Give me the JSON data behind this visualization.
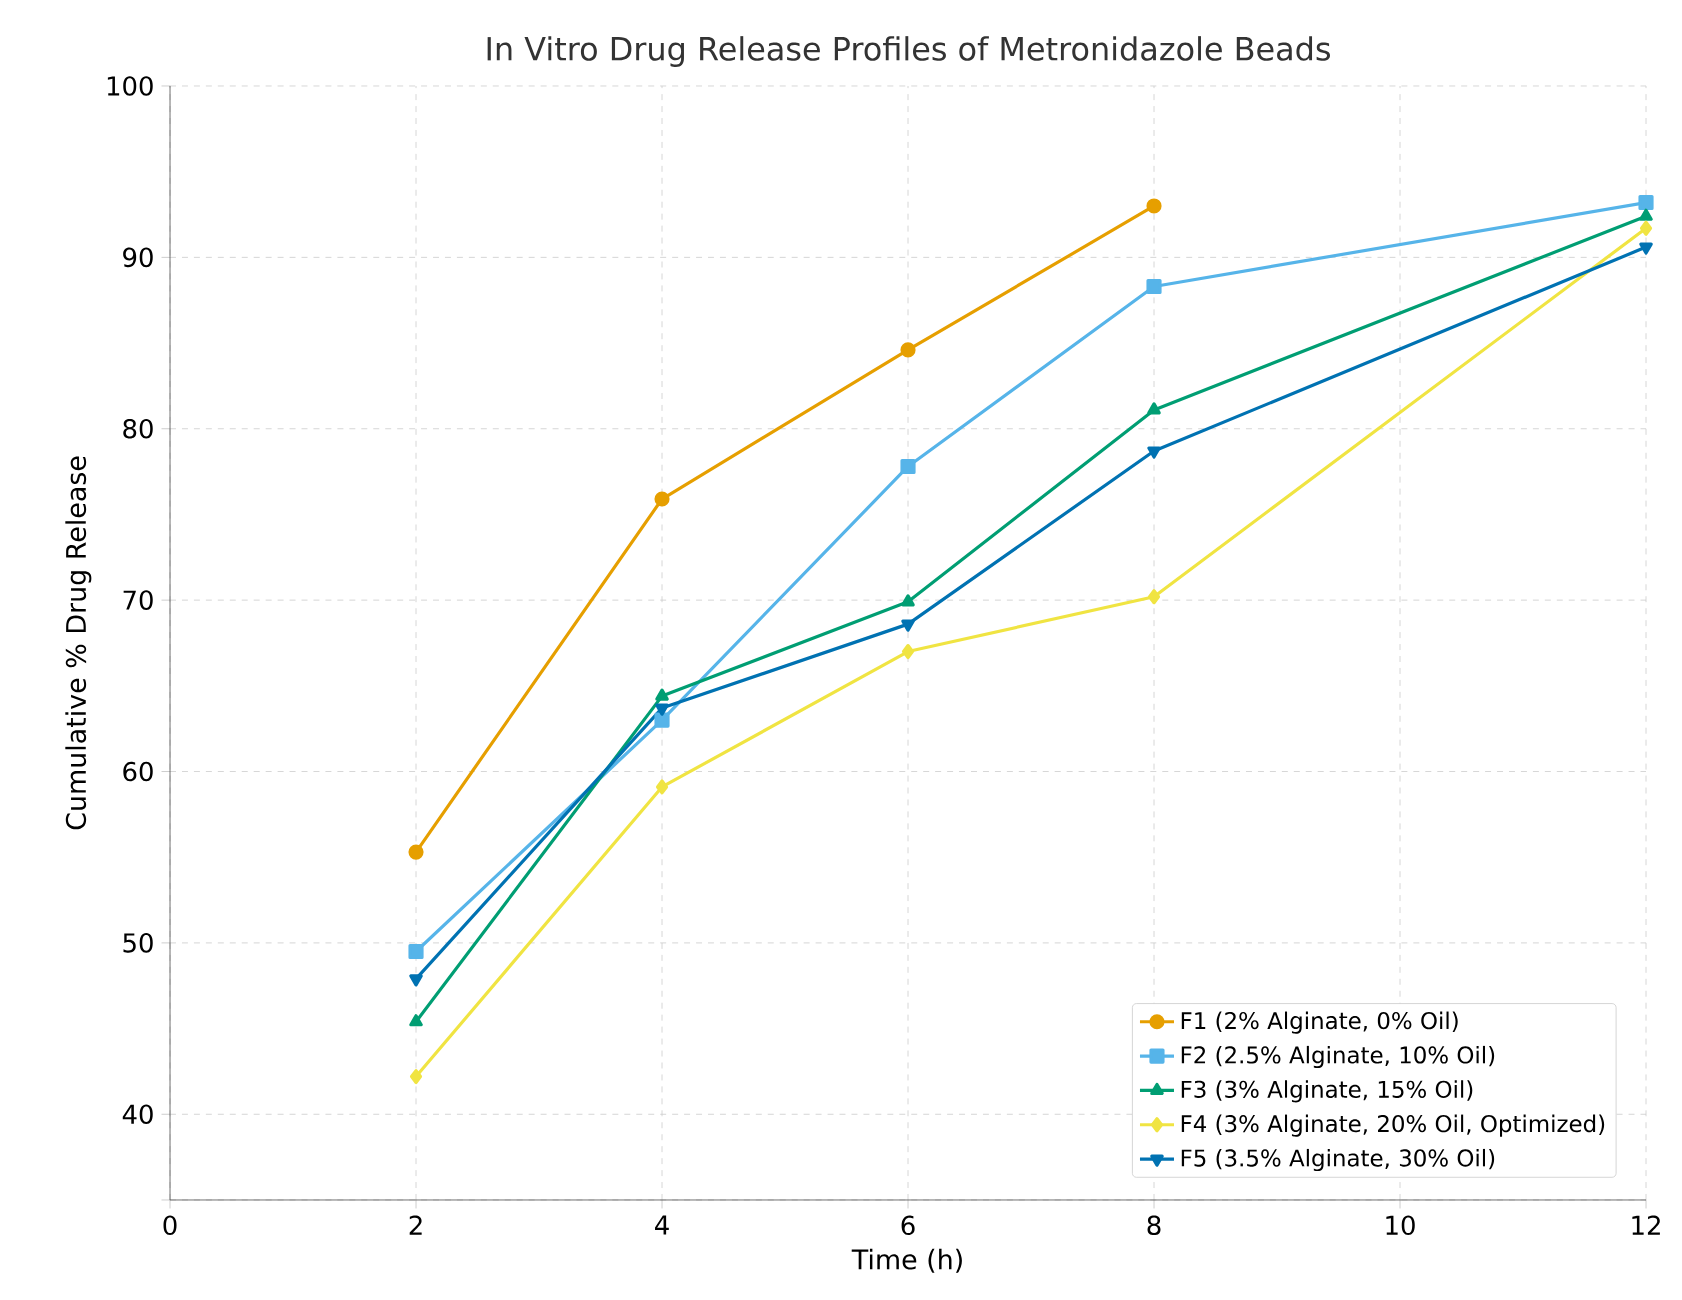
{
  "chart_data": {
    "type": "line",
    "title": "In Vitro Drug Release Profiles of Metronidazole Beads",
    "xlabel": "Time (h)",
    "ylabel": "Cumulative % Drug Release",
    "x": [
      2,
      4,
      6,
      8,
      12
    ],
    "series": [
      {
        "name": "F1 (2% Alginate, 0% Oil)",
        "color": "#e69f00",
        "marker": "circle",
        "values": [
          55.3,
          75.9,
          84.6,
          93.0,
          null
        ]
      },
      {
        "name": "F2 (2.5% Alginate, 10% Oil)",
        "color": "#56b4e9",
        "marker": "square",
        "values": [
          49.5,
          63.0,
          77.8,
          88.3,
          93.2
        ]
      },
      {
        "name": "F3 (3% Alginate, 15% Oil)",
        "color": "#009e73",
        "marker": "triangle",
        "values": [
          45.4,
          64.4,
          69.9,
          81.1,
          92.4
        ]
      },
      {
        "name": "F4 (3% Alginate, 20% Oil, Optimized)",
        "color": "#f0e442",
        "marker": "diamond",
        "values": [
          42.2,
          59.1,
          67.0,
          70.2,
          91.7
        ]
      },
      {
        "name": "F5 (3.5% Alginate, 30% Oil)",
        "color": "#0072b2",
        "marker": "triangle-down",
        "values": [
          47.9,
          63.7,
          68.6,
          78.7,
          90.6
        ]
      }
    ],
    "xlim": [
      0,
      12
    ],
    "xticks": [
      0,
      2,
      4,
      6,
      8,
      10,
      12
    ],
    "ylim": [
      35,
      100
    ],
    "yticks": [
      {
        "value": 35,
        "label": null
      },
      40,
      50,
      60,
      70,
      80,
      90,
      100
    ],
    "grid": true,
    "legend": "bottom right",
    "line_style": "solid"
  }
}
